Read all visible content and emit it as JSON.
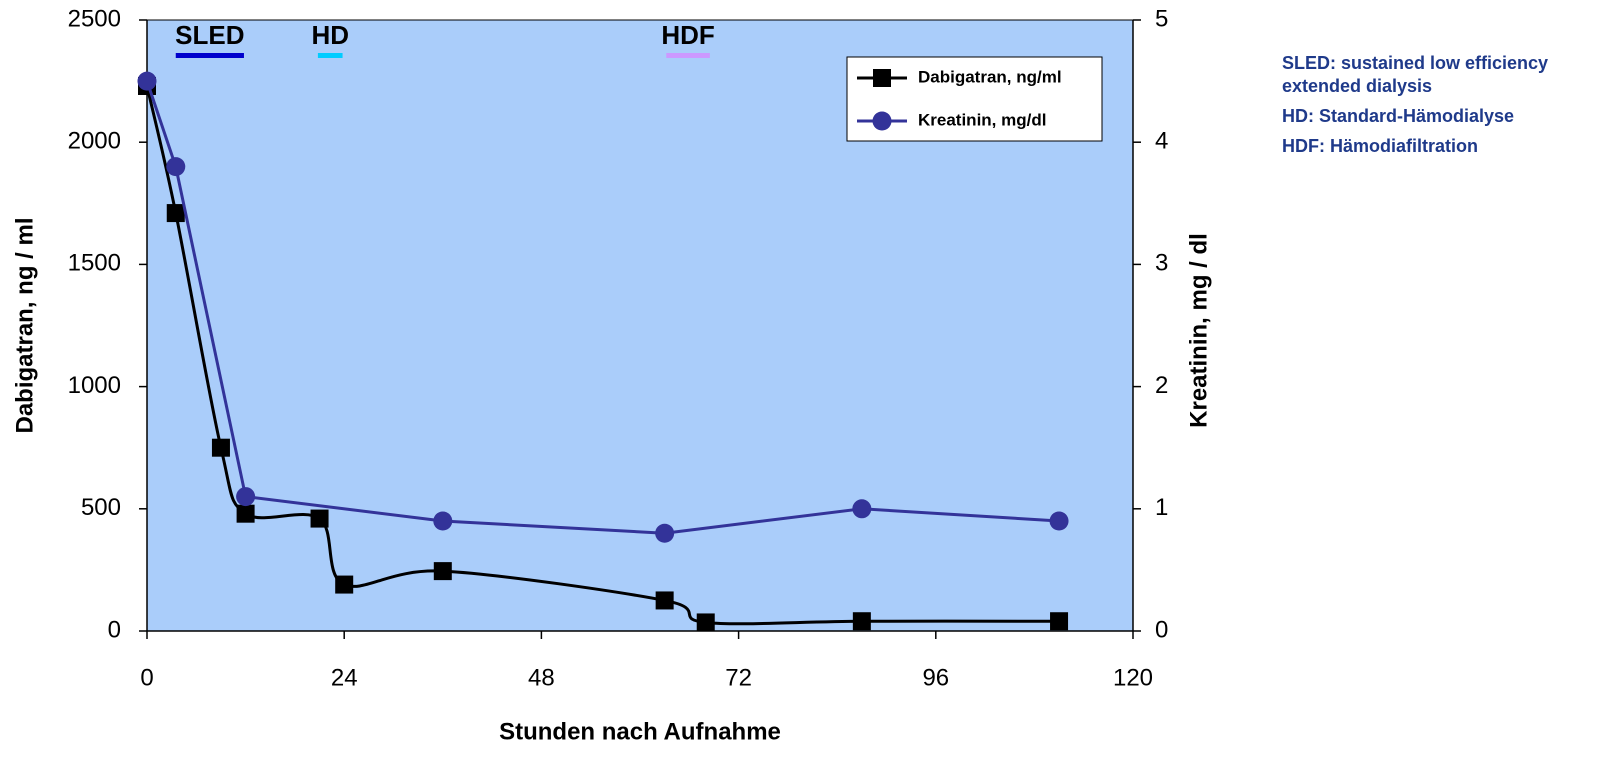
{
  "chart_data": {
    "type": "line",
    "xlabel": "Stunden nach Aufnahme",
    "ylabel": "Dabigatran, ng / ml",
    "y2label": "Kreatinin, mg / dl",
    "xlim": [
      0,
      120
    ],
    "xticks": [
      0,
      24,
      48,
      72,
      96,
      120
    ],
    "ylim": [
      0,
      2500
    ],
    "yticks": [
      0,
      500,
      1000,
      1500,
      2000,
      2500
    ],
    "y2lim": [
      0,
      5
    ],
    "y2ticks": [
      0,
      1,
      2,
      3,
      4,
      5
    ],
    "background": "#aacdfa",
    "legend": "upper right",
    "series": [
      {
        "name": "Dabigatran, ng/ml",
        "color": "#000000",
        "marker": "square",
        "smooth": true,
        "x": [
          0,
          3.5,
          9,
          12,
          21,
          24,
          36,
          63,
          68,
          87,
          111
        ],
        "values": [
          2230,
          1710,
          750,
          480,
          460,
          190,
          245,
          125,
          35,
          40,
          40
        ]
      },
      {
        "name": "Kreatinin, mg/dl",
        "color": "#333399",
        "marker": "circle",
        "smooth": false,
        "axis": "y2",
        "x": [
          0,
          3.5,
          12,
          36,
          63,
          87,
          111
        ],
        "values": [
          4.5,
          3.8,
          1.1,
          0.9,
          0.8,
          1.0,
          0.9
        ]
      }
    ],
    "annotations": [
      {
        "text": "SLED",
        "x": [
          3.5,
          11.8
        ],
        "color": "#0000cc"
      },
      {
        "text": "HD",
        "x": [
          20.8,
          23.8
        ],
        "color": "#00ccff"
      },
      {
        "text": "HDF",
        "x": [
          63.2,
          68.5
        ],
        "color": "#cc99ff"
      }
    ],
    "notes": [
      "SLED: sustained low efficiency extended dialysis",
      "HD: Standard-Hämodialyse",
      "HDF: Hämodiafiltration"
    ]
  }
}
